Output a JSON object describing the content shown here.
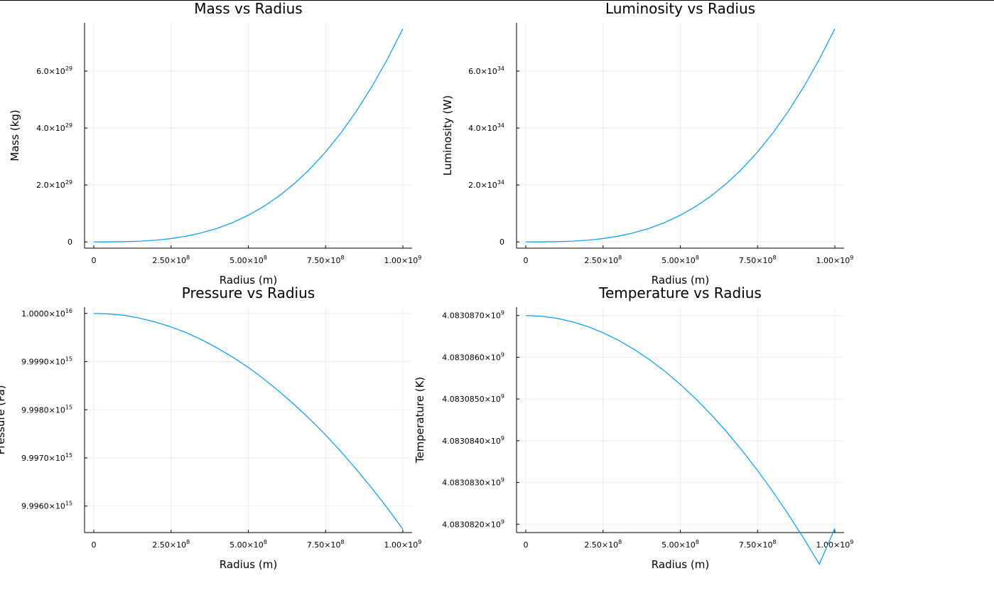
{
  "colors": {
    "series": "#009af9"
  },
  "chart_data": [
    {
      "type": "line",
      "title": "Mass vs Radius",
      "xlabel": "Radius (m)",
      "ylabel": "Mass (kg)",
      "xlim": [
        -30000000.0,
        1030000000.0
      ],
      "ylim": [
        -2.2e+28,
        7.7e+29
      ],
      "grid": true,
      "legend": "none",
      "x_ticks": [
        {
          "value": 0,
          "label": "0"
        },
        {
          "value": 250000000.0,
          "mant": "2.50",
          "exp": "8"
        },
        {
          "value": 500000000.0,
          "mant": "5.00",
          "exp": "8"
        },
        {
          "value": 750000000.0,
          "mant": "7.50",
          "exp": "8"
        },
        {
          "value": 1000000000.0,
          "mant": "1.00",
          "exp": "9"
        }
      ],
      "y_ticks": [
        {
          "value": 0,
          "label": "0"
        },
        {
          "value": 2e+29,
          "mant": "2.0",
          "exp": "29"
        },
        {
          "value": 4e+29,
          "mant": "4.0",
          "exp": "29"
        },
        {
          "value": 6e+29,
          "mant": "6.0",
          "exp": "29"
        }
      ],
      "series": [
        {
          "x": [
            0,
            50000000.0,
            100000000.0,
            150000000.0,
            200000000.0,
            250000000.0,
            300000000.0,
            350000000.0,
            400000000.0,
            450000000.0,
            500000000.0,
            550000000.0,
            600000000.0,
            650000000.0,
            700000000.0,
            750000000.0,
            800000000.0,
            850000000.0,
            900000000.0,
            950000000.0,
            1000000000.0
          ],
          "y": [
            0,
            9.4e+25,
            7.5e+26,
            2.5e+27,
            6e+27,
            1.17e+28,
            2.02e+28,
            3.21e+28,
            4.79e+28,
            6.82e+28,
            9.36e+28,
            1.246e+29,
            1.617e+29,
            2.056e+29,
            2.568e+29,
            3.159e+29,
            3.833e+29,
            4.598e+29,
            5.458e+29,
            6.419e+29,
            7.487e+29
          ]
        }
      ]
    },
    {
      "type": "line",
      "title": "Luminosity vs Radius",
      "xlabel": "Radius (m)",
      "ylabel": "Luminosity (W)",
      "xlim": [
        -30000000.0,
        1030000000.0
      ],
      "ylim": [
        -2.2e+33,
        7.7e+34
      ],
      "grid": true,
      "legend": "none",
      "x_ticks": [
        {
          "value": 0,
          "label": "0"
        },
        {
          "value": 250000000.0,
          "mant": "2.50",
          "exp": "8"
        },
        {
          "value": 500000000.0,
          "mant": "5.00",
          "exp": "8"
        },
        {
          "value": 750000000.0,
          "mant": "7.50",
          "exp": "8"
        },
        {
          "value": 1000000000.0,
          "mant": "1.00",
          "exp": "9"
        }
      ],
      "y_ticks": [
        {
          "value": 0,
          "label": "0"
        },
        {
          "value": 2e+34,
          "mant": "2.0",
          "exp": "34"
        },
        {
          "value": 4e+34,
          "mant": "4.0",
          "exp": "34"
        },
        {
          "value": 6e+34,
          "mant": "6.0",
          "exp": "34"
        }
      ],
      "series": [
        {
          "x": [
            0,
            50000000.0,
            100000000.0,
            150000000.0,
            200000000.0,
            250000000.0,
            300000000.0,
            350000000.0,
            400000000.0,
            450000000.0,
            500000000.0,
            550000000.0,
            600000000.0,
            650000000.0,
            700000000.0,
            750000000.0,
            800000000.0,
            850000000.0,
            900000000.0,
            950000000.0,
            1000000000.0
          ],
          "y": [
            0,
            9.4e+30,
            7.5e+31,
            2.5e+32,
            6e+32,
            1.17e+33,
            2.02e+33,
            3.21e+33,
            4.79e+33,
            6.82e+33,
            9.36e+33,
            1.246e+34,
            1.617e+34,
            2.056e+34,
            2.568e+34,
            3.159e+34,
            3.833e+34,
            4.598e+34,
            5.458e+34,
            6.419e+34,
            7.487e+34
          ]
        }
      ]
    },
    {
      "type": "line",
      "title": "Pressure vs Radius",
      "xlabel": "Radius (m)",
      "ylabel": "Pressure (Pa)",
      "xlim": [
        -30000000.0,
        1030000000.0
      ],
      "ylim": [
        9995450000000000.0,
        1.000013e+16
      ],
      "grid": true,
      "legend": "none",
      "x_ticks": [
        {
          "value": 0,
          "label": "0"
        },
        {
          "value": 250000000.0,
          "mant": "2.50",
          "exp": "8"
        },
        {
          "value": 500000000.0,
          "mant": "5.00",
          "exp": "8"
        },
        {
          "value": 750000000.0,
          "mant": "7.50",
          "exp": "8"
        },
        {
          "value": 1000000000.0,
          "mant": "1.00",
          "exp": "9"
        }
      ],
      "y_ticks": [
        {
          "value": 9996000000000000.0,
          "mant": "9.9960",
          "exp": "15"
        },
        {
          "value": 9997000000000000.0,
          "mant": "9.9970",
          "exp": "15"
        },
        {
          "value": 9998000000000000.0,
          "mant": "9.9980",
          "exp": "15"
        },
        {
          "value": 9999000000000000.0,
          "mant": "9.9990",
          "exp": "15"
        },
        {
          "value": 1e+16,
          "mant": "1.0000",
          "exp": "16"
        }
      ],
      "series": [
        {
          "x": [
            0,
            50000000.0,
            100000000.0,
            150000000.0,
            200000000.0,
            250000000.0,
            300000000.0,
            350000000.0,
            400000000.0,
            450000000.0,
            500000000.0,
            550000000.0,
            600000000.0,
            650000000.0,
            700000000.0,
            750000000.0,
            800000000.0,
            850000000.0,
            900000000.0,
            950000000.0,
            1000000000.0
          ],
          "y": [
            1e+16,
            9999990000000000.0,
            9999960000000000.0,
            9999900000000000.0,
            9999820000000000.0,
            9999720000000000.0,
            9999600000000000.0,
            9999450000000000.0,
            9999280000000000.0,
            9999090000000000.0,
            9998880000000000.0,
            9998640000000000.0,
            9998380000000000.0,
            9998100000000000.0,
            9997800000000000.0,
            9997480000000000.0,
            9997130000000000.0,
            9996760000000000.0,
            9996370000000000.0,
            9995960000000000.0,
            9995520000000000.0
          ]
        }
      ]
    },
    {
      "type": "line",
      "title": "Temperature vs Radius",
      "xlabel": "Radius (m)",
      "ylabel": "Temperature (K)",
      "xlim": [
        -30000000.0,
        1030000000.0
      ],
      "ylim": [
        4083081800.0,
        4083087200.0
      ],
      "grid": true,
      "legend": "none",
      "x_ticks": [
        {
          "value": 0,
          "label": "0"
        },
        {
          "value": 250000000.0,
          "mant": "2.50",
          "exp": "8"
        },
        {
          "value": 500000000.0,
          "mant": "5.00",
          "exp": "8"
        },
        {
          "value": 750000000.0,
          "mant": "7.50",
          "exp": "8"
        },
        {
          "value": 1000000000.0,
          "mant": "1.00",
          "exp": "9"
        }
      ],
      "y_ticks": [
        {
          "value": 4083082000.0,
          "mant": "4.0830820",
          "exp": "9"
        },
        {
          "value": 4083083000.0,
          "mant": "4.0830830",
          "exp": "9"
        },
        {
          "value": 4083084000.0,
          "mant": "4.0830840",
          "exp": "9"
        },
        {
          "value": 4083085000.0,
          "mant": "4.0830850",
          "exp": "9"
        },
        {
          "value": 4083086000.0,
          "mant": "4.0830860",
          "exp": "9"
        },
        {
          "value": 4083087000.0,
          "mant": "4.0830870",
          "exp": "9"
        }
      ],
      "series": [
        {
          "x": [
            0,
            50000000.0,
            100000000.0,
            150000000.0,
            200000000.0,
            250000000.0,
            300000000.0,
            350000000.0,
            400000000.0,
            450000000.0,
            500000000.0,
            550000000.0,
            600000000.0,
            650000000.0,
            700000000.0,
            750000000.0,
            800000000.0,
            850000000.0,
            900000000.0,
            950000000.0,
            1000000000.0
          ],
          "y": [
            4083087000.0,
            4083086983.5,
            4083086934.0,
            4083086851.5,
            4083086736.0,
            4083086587.5,
            4083086406.0,
            4083086191.5,
            4083085944.0,
            4083085663.5,
            4083085350.0,
            4083085003.5,
            4083084624.0,
            4083084211.5,
            4083083766.0,
            4083083287.5,
            4083082776.0,
            4083082231.5,
            4083081654.0,
            4083081043.5,
            4083081900.0
          ]
        }
      ]
    }
  ]
}
